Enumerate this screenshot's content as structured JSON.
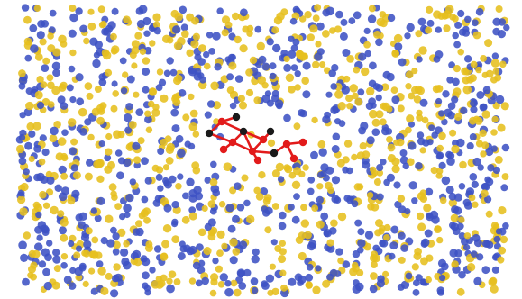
{
  "scene": {
    "dot_colors": [
      "#3d52c4",
      "#e6bf1e"
    ],
    "link_color": "#e21b1b",
    "node_color": "#1a1a1a"
  }
}
